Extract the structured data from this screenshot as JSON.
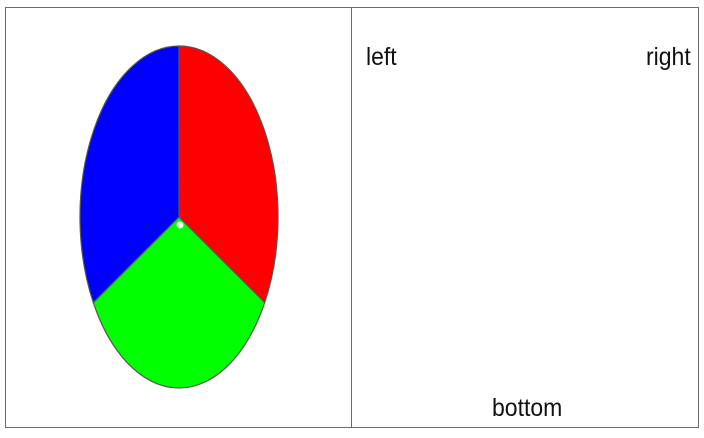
{
  "labels": {
    "left": "left",
    "right": "right",
    "bottom": "bottom"
  },
  "pie": {
    "slices": [
      {
        "color": "#ff0000",
        "fraction": 0.3333
      },
      {
        "color": "#00ff00",
        "fraction": 0.3333
      },
      {
        "color": "#0000ff",
        "fraction": 0.3333
      }
    ],
    "outline_color": "#555555",
    "center_dot_color": "#ffffff"
  }
}
